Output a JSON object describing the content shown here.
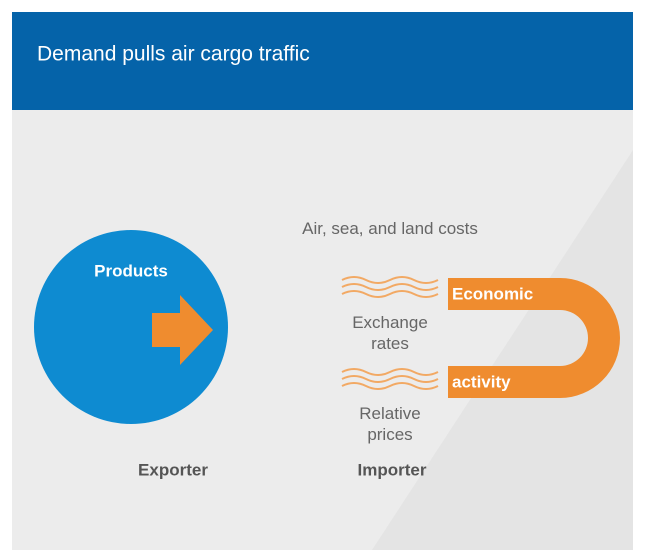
{
  "header": {
    "title": "Demand pulls air cargo traffic"
  },
  "exporter": {
    "circle_label": "Products",
    "label": "Exporter"
  },
  "importer": {
    "magnet_top": "Economic",
    "magnet_bottom": "activity",
    "label": "Importer"
  },
  "factors": [
    "Air, sea, and land costs",
    "Exchange rates",
    "Relative prices"
  ]
}
